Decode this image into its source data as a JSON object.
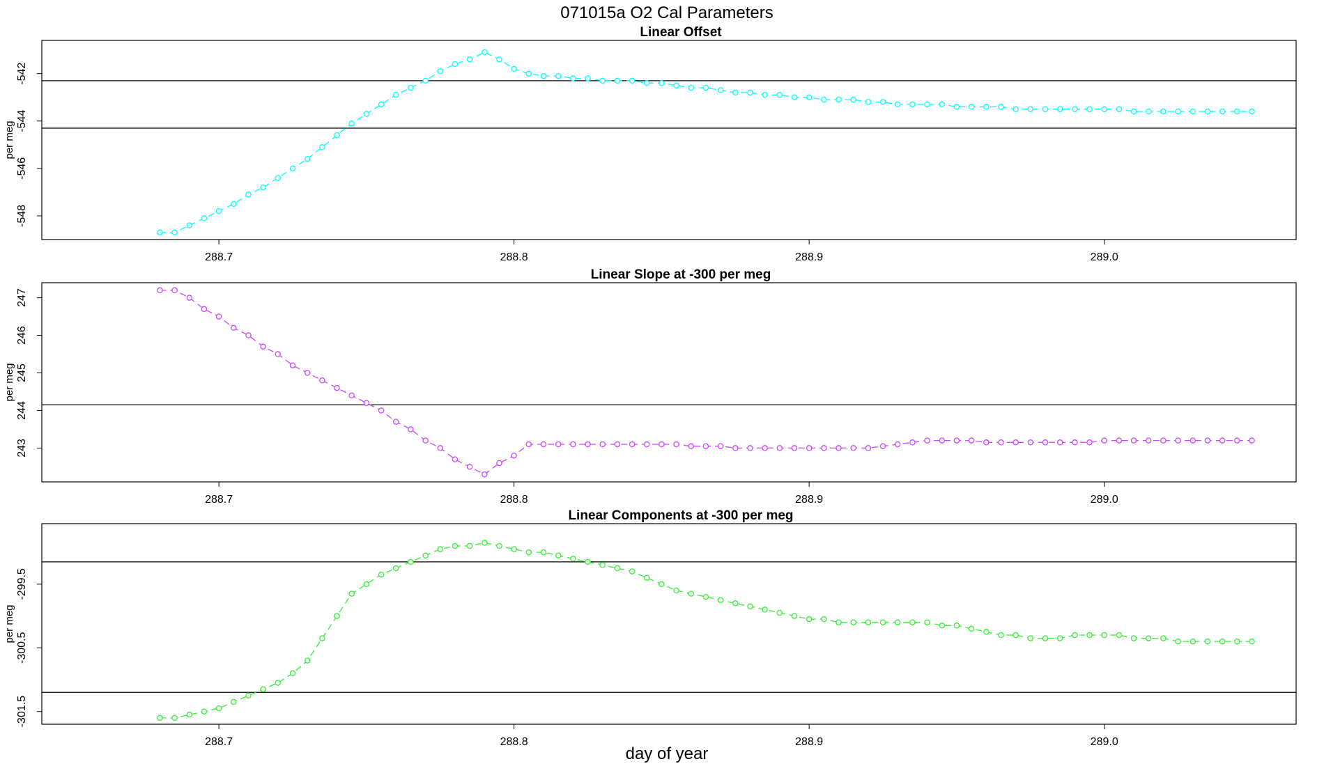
{
  "main_title": "071015a   O2 Cal Parameters",
  "x_axis_label": "day of year",
  "chart_data": [
    {
      "type": "line",
      "title": "Linear Offset",
      "ylabel": "per meg",
      "xlim": [
        288.64,
        289.065
      ],
      "ylim": [
        -549.0,
        -540.6
      ],
      "x_ticks": [
        "288.7",
        "288.8",
        "288.9",
        "289.0"
      ],
      "y_ticks": [
        "-542",
        "-544",
        "-546",
        "-548"
      ],
      "hlines": [
        -542.3,
        -544.3
      ],
      "series": [
        {
          "color": "#00ffff",
          "x": [
            288.68,
            288.685,
            288.69,
            288.695,
            288.7,
            288.705,
            288.71,
            288.715,
            288.72,
            288.725,
            288.73,
            288.735,
            288.74,
            288.745,
            288.75,
            288.755,
            288.76,
            288.765,
            288.77,
            288.775,
            288.78,
            288.785,
            288.79,
            288.795,
            288.8,
            288.805,
            288.81,
            288.815,
            288.82,
            288.825,
            288.83,
            288.835,
            288.84,
            288.845,
            288.85,
            288.855,
            288.86,
            288.865,
            288.87,
            288.875,
            288.88,
            288.885,
            288.89,
            288.895,
            288.9,
            288.905,
            288.91,
            288.915,
            288.92,
            288.925,
            288.93,
            288.935,
            288.94,
            288.945,
            288.95,
            288.955,
            288.96,
            288.965,
            288.97,
            288.975,
            288.98,
            288.985,
            288.99,
            288.995,
            289.0,
            289.005,
            289.01,
            289.015,
            289.02,
            289.025,
            289.03,
            289.035,
            289.04,
            289.045,
            289.05
          ],
          "values": [
            -548.7,
            -548.7,
            -548.4,
            -548.1,
            -547.8,
            -547.5,
            -547.1,
            -546.8,
            -546.4,
            -546.0,
            -545.6,
            -545.1,
            -544.6,
            -544.1,
            -543.7,
            -543.3,
            -542.9,
            -542.6,
            -542.3,
            -541.9,
            -541.6,
            -541.4,
            -541.1,
            -541.4,
            -541.8,
            -542.0,
            -542.1,
            -542.1,
            -542.2,
            -542.2,
            -542.3,
            -542.3,
            -542.3,
            -542.4,
            -542.4,
            -542.5,
            -542.6,
            -542.6,
            -542.7,
            -542.8,
            -542.8,
            -542.9,
            -542.9,
            -543.0,
            -543.0,
            -543.1,
            -543.1,
            -543.1,
            -543.2,
            -543.2,
            -543.3,
            -543.3,
            -543.3,
            -543.3,
            -543.4,
            -543.4,
            -543.4,
            -543.4,
            -543.5,
            -543.5,
            -543.5,
            -543.5,
            -543.5,
            -543.5,
            -543.5,
            -543.5,
            -543.6,
            -543.6,
            -543.6,
            -543.6,
            -543.6,
            -543.6,
            -543.6,
            -543.6,
            -543.6
          ]
        }
      ]
    },
    {
      "type": "line",
      "title": "Linear Slope at -300 per meg",
      "ylabel": "per meg",
      "xlim": [
        288.64,
        289.065
      ],
      "ylim": [
        242.1,
        247.4
      ],
      "x_ticks": [
        "288.7",
        "288.8",
        "288.9",
        "289.0"
      ],
      "y_ticks": [
        "247",
        "246",
        "245",
        "244",
        "243"
      ],
      "hlines": [
        244.15
      ],
      "series": [
        {
          "color": "#cc44ff",
          "x": [
            288.68,
            288.685,
            288.69,
            288.695,
            288.7,
            288.705,
            288.71,
            288.715,
            288.72,
            288.725,
            288.73,
            288.735,
            288.74,
            288.745,
            288.75,
            288.755,
            288.76,
            288.765,
            288.77,
            288.775,
            288.78,
            288.785,
            288.79,
            288.795,
            288.8,
            288.805,
            288.81,
            288.815,
            288.82,
            288.825,
            288.83,
            288.835,
            288.84,
            288.845,
            288.85,
            288.855,
            288.86,
            288.865,
            288.87,
            288.875,
            288.88,
            288.885,
            288.89,
            288.895,
            288.9,
            288.905,
            288.91,
            288.915,
            288.92,
            288.925,
            288.93,
            288.935,
            288.94,
            288.945,
            288.95,
            288.955,
            288.96,
            288.965,
            288.97,
            288.975,
            288.98,
            288.985,
            288.99,
            288.995,
            289.0,
            289.005,
            289.01,
            289.015,
            289.02,
            289.025,
            289.03,
            289.035,
            289.04,
            289.045,
            289.05
          ],
          "values": [
            247.2,
            247.2,
            247.0,
            246.7,
            246.5,
            246.2,
            246.0,
            245.7,
            245.5,
            245.2,
            245.0,
            244.8,
            244.6,
            244.4,
            244.2,
            244.0,
            243.7,
            243.5,
            243.2,
            243.0,
            242.7,
            242.5,
            242.3,
            242.6,
            242.8,
            243.1,
            243.1,
            243.1,
            243.1,
            243.1,
            243.1,
            243.1,
            243.1,
            243.1,
            243.1,
            243.1,
            243.05,
            243.05,
            243.05,
            243.0,
            243.0,
            243.0,
            243.0,
            243.0,
            243.0,
            243.0,
            243.0,
            243.0,
            243.0,
            243.05,
            243.1,
            243.15,
            243.2,
            243.2,
            243.2,
            243.2,
            243.15,
            243.15,
            243.15,
            243.15,
            243.15,
            243.15,
            243.15,
            243.15,
            243.2,
            243.2,
            243.2,
            243.2,
            243.2,
            243.2,
            243.2,
            243.2,
            243.2,
            243.2,
            243.2
          ]
        }
      ]
    },
    {
      "type": "line",
      "title": "Linear Components at -300 per meg",
      "ylabel": "per meg",
      "xlim": [
        288.64,
        289.065
      ],
      "ylim": [
        -301.7,
        -298.55
      ],
      "x_ticks": [
        "288.7",
        "288.8",
        "288.9",
        "289.0"
      ],
      "y_ticks": [
        "-299.5",
        "-300.5",
        "-301.5"
      ],
      "hlines": [
        -299.15,
        -301.2
      ],
      "series": [
        {
          "color": "#33ee33",
          "x": [
            288.68,
            288.685,
            288.69,
            288.695,
            288.7,
            288.705,
            288.71,
            288.715,
            288.72,
            288.725,
            288.73,
            288.735,
            288.74,
            288.745,
            288.75,
            288.755,
            288.76,
            288.765,
            288.77,
            288.775,
            288.78,
            288.785,
            288.79,
            288.795,
            288.8,
            288.805,
            288.81,
            288.815,
            288.82,
            288.825,
            288.83,
            288.835,
            288.84,
            288.845,
            288.85,
            288.855,
            288.86,
            288.865,
            288.87,
            288.875,
            288.88,
            288.885,
            288.89,
            288.895,
            288.9,
            288.905,
            288.91,
            288.915,
            288.92,
            288.925,
            288.93,
            288.935,
            288.94,
            288.945,
            288.95,
            288.955,
            288.96,
            288.965,
            288.97,
            288.975,
            288.98,
            288.985,
            288.99,
            288.995,
            289.0,
            289.005,
            289.01,
            289.015,
            289.02,
            289.025,
            289.03,
            289.035,
            289.04,
            289.045,
            289.05
          ],
          "values": [
            -301.6,
            -301.6,
            -301.55,
            -301.5,
            -301.45,
            -301.35,
            -301.25,
            -301.15,
            -301.05,
            -300.9,
            -300.7,
            -300.35,
            -300.0,
            -299.65,
            -299.5,
            -299.35,
            -299.25,
            -299.15,
            -299.05,
            -298.95,
            -298.9,
            -298.9,
            -298.85,
            -298.9,
            -298.95,
            -299.0,
            -299.0,
            -299.05,
            -299.1,
            -299.15,
            -299.2,
            -299.25,
            -299.3,
            -299.4,
            -299.5,
            -299.6,
            -299.65,
            -299.7,
            -299.75,
            -299.8,
            -299.85,
            -299.9,
            -299.95,
            -300.0,
            -300.05,
            -300.05,
            -300.1,
            -300.1,
            -300.1,
            -300.1,
            -300.1,
            -300.1,
            -300.1,
            -300.15,
            -300.15,
            -300.2,
            -300.25,
            -300.3,
            -300.3,
            -300.35,
            -300.35,
            -300.35,
            -300.3,
            -300.3,
            -300.3,
            -300.3,
            -300.35,
            -300.35,
            -300.35,
            -300.4,
            -300.4,
            -300.4,
            -300.4,
            -300.4,
            -300.4
          ]
        }
      ]
    }
  ]
}
